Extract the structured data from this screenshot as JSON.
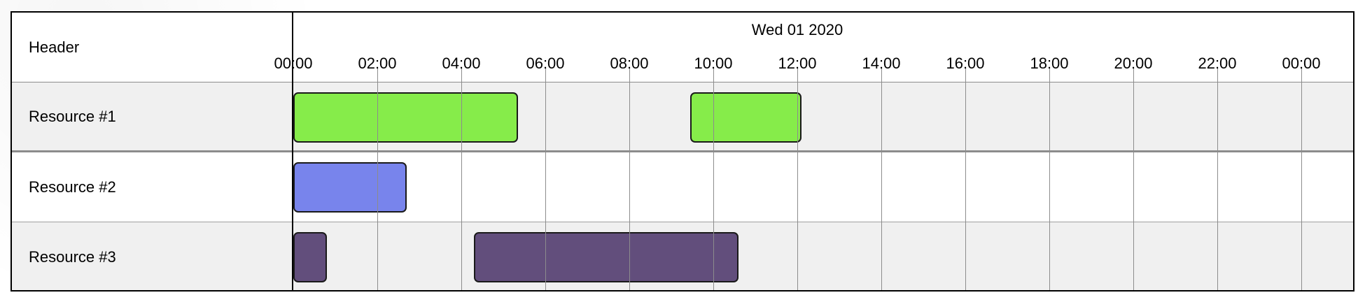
{
  "scheduler": {
    "header_label": "Header",
    "day_label": "Wed 01 2020",
    "hour_labels": [
      "00:00",
      "02:00",
      "04:00",
      "06:00",
      "08:00",
      "10:00",
      "12:00",
      "14:00",
      "16:00",
      "18:00",
      "20:00",
      "22:00",
      "00:00"
    ],
    "resources": [
      {
        "name": "Resource #1",
        "shade": "#f0f0f0",
        "events": [
          {
            "start_hour": 0,
            "end_hour": 5.35,
            "color": "#86ec4a"
          },
          {
            "start_hour": 9.45,
            "end_hour": 12.1,
            "color": "#86ec4a"
          }
        ]
      },
      {
        "name": "Resource #2",
        "shade": "#ffffff",
        "events": [
          {
            "start_hour": 0,
            "end_hour": 2.7,
            "color": "#7884ec"
          }
        ]
      },
      {
        "name": "Resource #3",
        "shade": "#f0f0f0",
        "events": [
          {
            "start_hour": 0,
            "end_hour": 0.8,
            "color": "#624e7c"
          },
          {
            "start_hour": 4.3,
            "end_hour": 10.6,
            "color": "#624e7c"
          }
        ]
      }
    ]
  }
}
